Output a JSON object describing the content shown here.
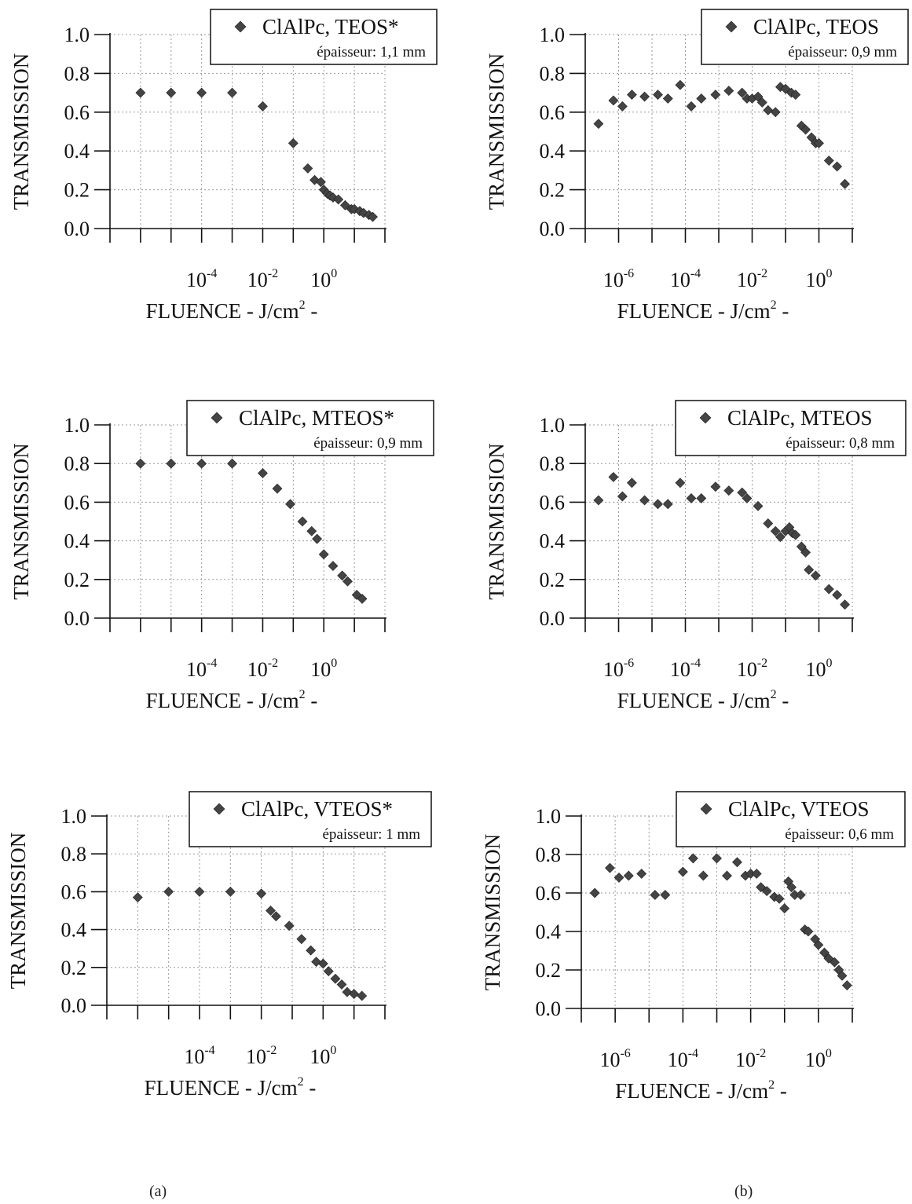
{
  "figure": {
    "caption_left": "(a)",
    "caption_right": "(b)",
    "marker_color": "#444444",
    "grid_color": "#9a9a9a",
    "axis_color": "#111111"
  },
  "chart_data": [
    {
      "type": "scatter",
      "legend": "ClAlPc, TEOS*",
      "thickness": "épaisseur: 1,1 mm",
      "xlabel": "FLUENCE - J/cm² -",
      "ylabel": "TRANSMISSION",
      "x_scale": "log",
      "xlim": [
        1e-07,
        100
      ],
      "ylim": [
        0,
        1.0
      ],
      "x_ticks": [
        "10-4",
        "10-2",
        "100"
      ],
      "y_ticks": [
        "0.0",
        "0.2",
        "0.4",
        "0.6",
        "0.8",
        "1.0"
      ],
      "grid": true,
      "legend_position": "top-right",
      "points": [
        [
          1e-06,
          0.7
        ],
        [
          1e-05,
          0.7
        ],
        [
          0.0001,
          0.7
        ],
        [
          0.001,
          0.7
        ],
        [
          0.01,
          0.63
        ],
        [
          0.1,
          0.44
        ],
        [
          0.3,
          0.31
        ],
        [
          0.5,
          0.25
        ],
        [
          0.8,
          0.24
        ],
        [
          1.0,
          0.2
        ],
        [
          1.3,
          0.18
        ],
        [
          1.6,
          0.17
        ],
        [
          2.0,
          0.16
        ],
        [
          3.0,
          0.15
        ],
        [
          5.0,
          0.12
        ],
        [
          8.0,
          0.1
        ],
        [
          10,
          0.1
        ],
        [
          15,
          0.09
        ],
        [
          20,
          0.08
        ],
        [
          30,
          0.07
        ],
        [
          40,
          0.06
        ]
      ]
    },
    {
      "type": "scatter",
      "legend": "ClAlPc, TEOS",
      "thickness": "épaisseur: 0,9 mm",
      "xlabel": "FLUENCE - J/cm² -",
      "ylabel": "TRANSMISSION",
      "x_scale": "log",
      "xlim": [
        1e-07,
        10
      ],
      "ylim": [
        0,
        1.0
      ],
      "x_ticks": [
        "10-6",
        "10-4",
        "10-2",
        "100"
      ],
      "y_ticks": [
        "0.0",
        "0.2",
        "0.4",
        "0.6",
        "0.8",
        "1.0"
      ],
      "grid": true,
      "legend_position": "top-right",
      "points": [
        [
          2.5e-07,
          0.54
        ],
        [
          7e-07,
          0.66
        ],
        [
          1.3e-06,
          0.63
        ],
        [
          2.5e-06,
          0.69
        ],
        [
          6e-06,
          0.68
        ],
        [
          1.5e-05,
          0.69
        ],
        [
          3e-05,
          0.67
        ],
        [
          7e-05,
          0.74
        ],
        [
          0.00015,
          0.63
        ],
        [
          0.0003,
          0.67
        ],
        [
          0.0008,
          0.69
        ],
        [
          0.002,
          0.71
        ],
        [
          0.005,
          0.7
        ],
        [
          0.007,
          0.67
        ],
        [
          0.01,
          0.67
        ],
        [
          0.015,
          0.68
        ],
        [
          0.02,
          0.65
        ],
        [
          0.03,
          0.61
        ],
        [
          0.05,
          0.6
        ],
        [
          0.07,
          0.73
        ],
        [
          0.1,
          0.72
        ],
        [
          0.15,
          0.7
        ],
        [
          0.2,
          0.69
        ],
        [
          0.3,
          0.53
        ],
        [
          0.4,
          0.51
        ],
        [
          0.6,
          0.47
        ],
        [
          0.8,
          0.44
        ],
        [
          1.0,
          0.44
        ],
        [
          2.0,
          0.35
        ],
        [
          3.5,
          0.32
        ],
        [
          6.0,
          0.23
        ]
      ]
    },
    {
      "type": "scatter",
      "legend": "ClAlPc, MTEOS*",
      "thickness": "épaisseur: 0,9 mm",
      "xlabel": "FLUENCE - J/cm² -",
      "ylabel": "TRANSMISSION",
      "x_scale": "log",
      "xlim": [
        1e-07,
        100
      ],
      "ylim": [
        0,
        1.0
      ],
      "x_ticks": [
        "10-4",
        "10-2",
        "100"
      ],
      "y_ticks": [
        "0.0",
        "0.2",
        "0.4",
        "0.6",
        "0.8",
        "1.0"
      ],
      "grid": true,
      "legend_position": "top-right",
      "points": [
        [
          1e-06,
          0.8
        ],
        [
          1e-05,
          0.8
        ],
        [
          0.0001,
          0.8
        ],
        [
          0.001,
          0.8
        ],
        [
          0.01,
          0.75
        ],
        [
          0.03,
          0.67
        ],
        [
          0.08,
          0.59
        ],
        [
          0.2,
          0.5
        ],
        [
          0.4,
          0.45
        ],
        [
          0.6,
          0.41
        ],
        [
          1.0,
          0.33
        ],
        [
          2.0,
          0.27
        ],
        [
          4.0,
          0.22
        ],
        [
          6.0,
          0.19
        ],
        [
          12,
          0.12
        ],
        [
          18,
          0.1
        ]
      ]
    },
    {
      "type": "scatter",
      "legend": "ClAlPc, MTEOS",
      "thickness": "épaisseur: 0,8 mm",
      "xlabel": "FLUENCE - J/cm² -",
      "ylabel": "TRANSMISSION",
      "x_scale": "log",
      "xlim": [
        1e-07,
        10
      ],
      "ylim": [
        0,
        1.0
      ],
      "x_ticks": [
        "10-6",
        "10-4",
        "10-2",
        "100"
      ],
      "y_ticks": [
        "0.0",
        "0.2",
        "0.4",
        "0.6",
        "0.8",
        "1.0"
      ],
      "grid": true,
      "legend_position": "top-right",
      "points": [
        [
          2.5e-07,
          0.61
        ],
        [
          7e-07,
          0.73
        ],
        [
          1.3e-06,
          0.63
        ],
        [
          2.5e-06,
          0.7
        ],
        [
          6e-06,
          0.61
        ],
        [
          1.5e-05,
          0.59
        ],
        [
          3e-05,
          0.59
        ],
        [
          7e-05,
          0.7
        ],
        [
          0.00015,
          0.62
        ],
        [
          0.0003,
          0.62
        ],
        [
          0.0008,
          0.68
        ],
        [
          0.002,
          0.66
        ],
        [
          0.005,
          0.65
        ],
        [
          0.007,
          0.62
        ],
        [
          0.015,
          0.58
        ],
        [
          0.03,
          0.49
        ],
        [
          0.05,
          0.45
        ],
        [
          0.07,
          0.42
        ],
        [
          0.1,
          0.45
        ],
        [
          0.13,
          0.47
        ],
        [
          0.16,
          0.44
        ],
        [
          0.2,
          0.43
        ],
        [
          0.3,
          0.37
        ],
        [
          0.4,
          0.34
        ],
        [
          0.5,
          0.25
        ],
        [
          0.8,
          0.22
        ],
        [
          2.0,
          0.15
        ],
        [
          3.5,
          0.12
        ],
        [
          6.0,
          0.07
        ]
      ]
    },
    {
      "type": "scatter",
      "legend": "ClAlPc, VTEOS*",
      "thickness": "épaisseur: 1 mm",
      "xlabel": "FLUENCE - J/cm² -",
      "ylabel": "TRANSMISSION",
      "x_scale": "log",
      "xlim": [
        1e-07,
        100
      ],
      "ylim": [
        0,
        1.0
      ],
      "x_ticks": [
        "10-4",
        "10-2",
        "100"
      ],
      "y_ticks": [
        "0.0",
        "0.2",
        "0.4",
        "0.6",
        "0.8",
        "1.0"
      ],
      "grid": true,
      "legend_position": "top-right",
      "points": [
        [
          1e-06,
          0.57
        ],
        [
          1e-05,
          0.6
        ],
        [
          0.0001,
          0.6
        ],
        [
          0.001,
          0.6
        ],
        [
          0.01,
          0.59
        ],
        [
          0.02,
          0.5
        ],
        [
          0.03,
          0.47
        ],
        [
          0.08,
          0.42
        ],
        [
          0.2,
          0.35
        ],
        [
          0.4,
          0.29
        ],
        [
          0.6,
          0.23
        ],
        [
          1.0,
          0.22
        ],
        [
          1.5,
          0.18
        ],
        [
          2.5,
          0.14
        ],
        [
          4.0,
          0.11
        ],
        [
          6.0,
          0.07
        ],
        [
          10,
          0.06
        ],
        [
          18,
          0.05
        ]
      ]
    },
    {
      "type": "scatter",
      "legend": "ClAlPc, VTEOS",
      "thickness": "épaisseur: 0,6 mm",
      "xlabel": "FLUENCE - J/cm² -",
      "ylabel": "TRANSMISSION",
      "x_scale": "log",
      "xlim": [
        1e-07,
        10
      ],
      "ylim": [
        0,
        1.0
      ],
      "x_ticks": [
        "10-6",
        "10-4",
        "10-2",
        "100"
      ],
      "y_ticks": [
        "0.0",
        "0.2",
        "0.4",
        "0.6",
        "0.8",
        "1.0"
      ],
      "grid": true,
      "legend_position": "top-right",
      "points": [
        [
          2.5e-07,
          0.6
        ],
        [
          7e-07,
          0.73
        ],
        [
          1.3e-06,
          0.68
        ],
        [
          2.5e-06,
          0.69
        ],
        [
          6e-06,
          0.7
        ],
        [
          1.5e-05,
          0.59
        ],
        [
          3e-05,
          0.59
        ],
        [
          0.0001,
          0.71
        ],
        [
          0.0002,
          0.78
        ],
        [
          0.0004,
          0.69
        ],
        [
          0.001,
          0.78
        ],
        [
          0.002,
          0.69
        ],
        [
          0.004,
          0.76
        ],
        [
          0.007,
          0.69
        ],
        [
          0.01,
          0.7
        ],
        [
          0.015,
          0.7
        ],
        [
          0.02,
          0.63
        ],
        [
          0.03,
          0.61
        ],
        [
          0.05,
          0.58
        ],
        [
          0.07,
          0.57
        ],
        [
          0.1,
          0.52
        ],
        [
          0.13,
          0.66
        ],
        [
          0.16,
          0.63
        ],
        [
          0.2,
          0.59
        ],
        [
          0.3,
          0.59
        ],
        [
          0.4,
          0.41
        ],
        [
          0.5,
          0.4
        ],
        [
          0.8,
          0.36
        ],
        [
          1.0,
          0.33
        ],
        [
          1.5,
          0.29
        ],
        [
          2.0,
          0.26
        ],
        [
          3.0,
          0.24
        ],
        [
          4.0,
          0.2
        ],
        [
          5.0,
          0.17
        ],
        [
          7.0,
          0.12
        ]
      ]
    }
  ]
}
